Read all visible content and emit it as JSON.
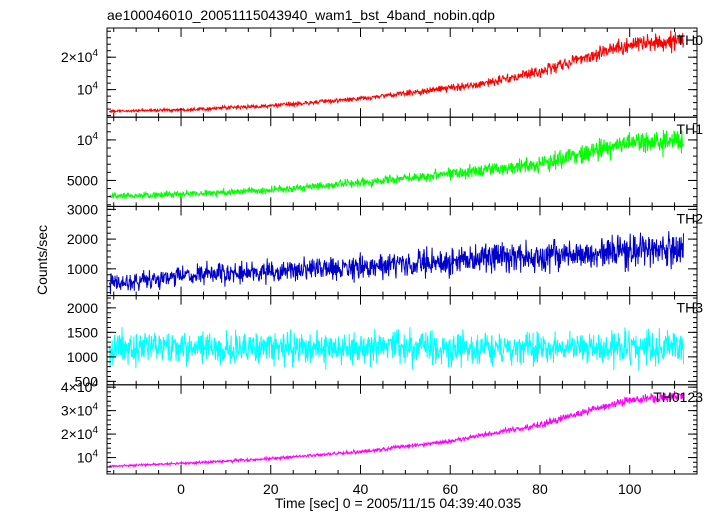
{
  "chart_data": {
    "type": "line",
    "title": "ae100046010_20051115043940_wam1_bst_4band_nobin.qdp",
    "xlabel": "Time [sec] 0 = 2005/11/15 04:39:40.035",
    "ylabel": "Counts/sec",
    "xlim": [
      -16.5,
      115
    ],
    "x_ticks": [
      {
        "value": 0,
        "label": "0"
      },
      {
        "value": 20,
        "label": "20"
      },
      {
        "value": 40,
        "label": "40"
      },
      {
        "value": 60,
        "label": "60"
      },
      {
        "value": 80,
        "label": "80"
      },
      {
        "value": 100,
        "label": "100"
      }
    ],
    "x_minor_step": 5,
    "data_x_range": [
      -16,
      112
    ],
    "grid": false,
    "panels": [
      {
        "name": "TH0",
        "color": "#ff0000",
        "ylim": [
          1500,
          29000
        ],
        "ticks": [
          {
            "value": 10000,
            "label": "10",
            "exp": "4"
          },
          {
            "value": 20000,
            "label": "2×10",
            "exp": "4"
          }
        ],
        "minor_step": 2000,
        "mean": [
          [
            -16,
            3300
          ],
          [
            0,
            3800
          ],
          [
            20,
            5000
          ],
          [
            40,
            7200
          ],
          [
            60,
            10500
          ],
          [
            70,
            12500
          ],
          [
            80,
            15500
          ],
          [
            90,
            20000
          ],
          [
            100,
            24000
          ],
          [
            112,
            25000
          ]
        ],
        "noise": [
          [
            -16,
            300
          ],
          [
            50,
            700
          ],
          [
            80,
            1500
          ],
          [
            112,
            2500
          ]
        ]
      },
      {
        "name": "TH1",
        "color": "#00ff00",
        "ylim": [
          1800,
          12800
        ],
        "ticks": [
          {
            "value": 5000,
            "label": "5000"
          },
          {
            "value": 10000,
            "label": "10",
            "exp": "4"
          }
        ],
        "minor_step": 1000,
        "mean": [
          [
            -16,
            3000
          ],
          [
            0,
            3300
          ],
          [
            20,
            3800
          ],
          [
            40,
            4700
          ],
          [
            60,
            5900
          ],
          [
            80,
            7000
          ],
          [
            90,
            8500
          ],
          [
            100,
            9600
          ],
          [
            112,
            9800
          ]
        ],
        "noise": [
          [
            -16,
            300
          ],
          [
            50,
            500
          ],
          [
            80,
            900
          ],
          [
            112,
            1300
          ]
        ]
      },
      {
        "name": "TH2",
        "color": "#0000cc",
        "ylim": [
          100,
          3100
        ],
        "ticks": [
          {
            "value": 1000,
            "label": "1000"
          },
          {
            "value": 2000,
            "label": "2000"
          },
          {
            "value": 3000,
            "label": "3000"
          }
        ],
        "minor_step": 200,
        "mean": [
          [
            -16,
            500
          ],
          [
            0,
            750
          ],
          [
            20,
            900
          ],
          [
            40,
            1050
          ],
          [
            60,
            1250
          ],
          [
            80,
            1450
          ],
          [
            100,
            1600
          ],
          [
            112,
            1700
          ]
        ],
        "noise": [
          [
            -16,
            250
          ],
          [
            40,
            350
          ],
          [
            80,
            450
          ],
          [
            112,
            500
          ]
        ]
      },
      {
        "name": "TH3",
        "color": "#00ffff",
        "ylim": [
          430,
          2250
        ],
        "ticks": [
          {
            "value": 500,
            "label": "500"
          },
          {
            "value": 1000,
            "label": "1000"
          },
          {
            "value": 1500,
            "label": "1500"
          },
          {
            "value": 2000,
            "label": "2000"
          }
        ],
        "minor_step": 100,
        "mean": [
          [
            -16,
            1180
          ],
          [
            112,
            1180
          ]
        ],
        "noise": [
          [
            -16,
            280
          ],
          [
            112,
            300
          ]
        ]
      },
      {
        "name": "TH0123",
        "color": "#ff00ff",
        "ylim": [
          3000,
          41000
        ],
        "ticks": [
          {
            "value": 10000,
            "label": "10",
            "exp": "4"
          },
          {
            "value": 20000,
            "label": "2×10",
            "exp": "4"
          },
          {
            "value": 30000,
            "label": "3×10",
            "exp": "4"
          },
          {
            "value": 40000,
            "label": "4×10",
            "exp": "4"
          }
        ],
        "minor_step": 2000,
        "mean": [
          [
            -16,
            6300
          ],
          [
            0,
            7500
          ],
          [
            20,
            9500
          ],
          [
            40,
            12500
          ],
          [
            60,
            17000
          ],
          [
            80,
            24000
          ],
          [
            90,
            29500
          ],
          [
            100,
            34500
          ],
          [
            112,
            36500
          ]
        ],
        "noise": [
          [
            -16,
            400
          ],
          [
            50,
            700
          ],
          [
            80,
            1200
          ],
          [
            112,
            1800
          ]
        ]
      }
    ]
  }
}
